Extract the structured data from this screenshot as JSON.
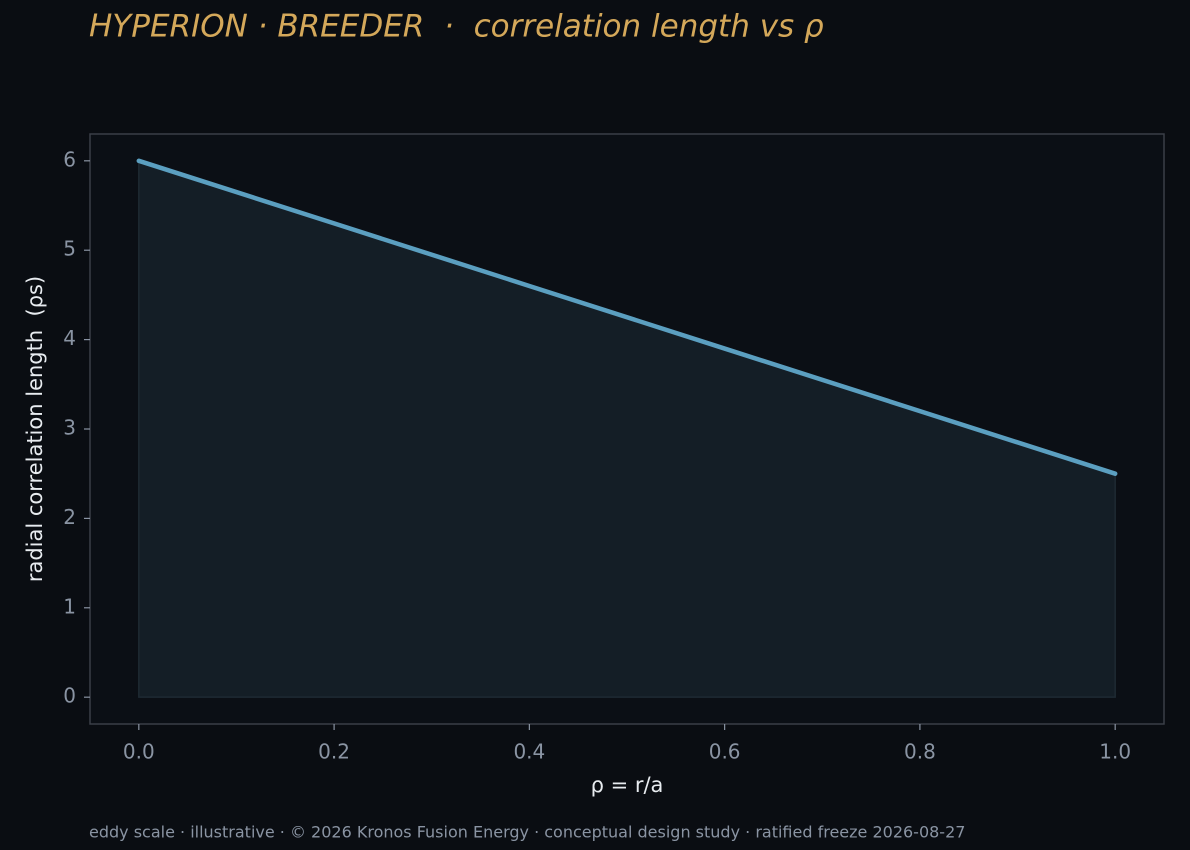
{
  "chart_data": {
    "type": "line",
    "title": "HYPERION · BREEDER  ·  correlation length vs ρ",
    "xlabel": "ρ = r/a",
    "ylabel": "radial correlation length  (ρs)",
    "footer": "eddy scale · illustrative · © 2026 Kronos Fusion Energy · conceptual design study · ratified freeze 2026-08-27",
    "x": [
      0,
      0.2,
      0.4,
      0.6,
      0.8,
      1
    ],
    "values": [
      6,
      5.3,
      4.6,
      3.9,
      3.2,
      2.5
    ],
    "color": "#5b9fc0",
    "fill_color": "#141e26",
    "fill": true,
    "grid": false,
    "xlim": [
      -0.05,
      1.05
    ],
    "ylim": [
      -0.3,
      6.3
    ],
    "xticks": [
      {
        "value": 0,
        "label": "0.0"
      },
      0.2,
      0.4,
      0.6,
      0.8,
      {
        "value": 1,
        "label": "1.0"
      }
    ],
    "yticks": [
      0,
      1,
      2,
      3,
      4,
      5,
      6
    ]
  }
}
